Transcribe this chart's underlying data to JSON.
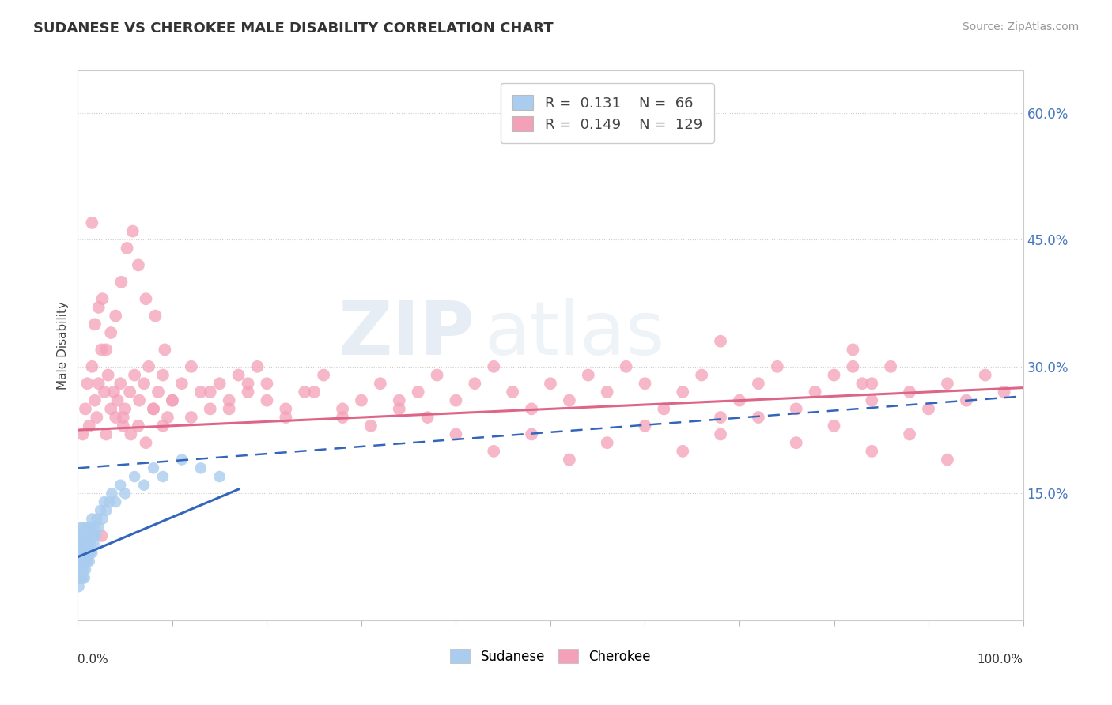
{
  "title": "SUDANESE VS CHEROKEE MALE DISABILITY CORRELATION CHART",
  "source": "Source: ZipAtlas.com",
  "ylabel": "Male Disability",
  "ytick_labels": [
    "15.0%",
    "30.0%",
    "45.0%",
    "60.0%"
  ],
  "ytick_values": [
    0.15,
    0.3,
    0.45,
    0.6
  ],
  "xlim": [
    0.0,
    1.0
  ],
  "ylim": [
    0.0,
    0.65
  ],
  "sudanese_R": 0.131,
  "sudanese_N": 66,
  "cherokee_R": 0.149,
  "cherokee_N": 129,
  "sudanese_color": "#aaccee",
  "sudanese_line_color": "#3366bb",
  "cherokee_color": "#f4a0b8",
  "cherokee_line_color": "#dd6688",
  "cherokee_trendline": [
    0.0,
    1.0,
    0.225,
    0.275
  ],
  "sudanese_solid_line": [
    0.0,
    0.17,
    0.075,
    0.155
  ],
  "sudanese_dashed_line": [
    0.0,
    1.0,
    0.18,
    0.265
  ],
  "cherokee_x": [
    0.005,
    0.008,
    0.01,
    0.012,
    0.015,
    0.018,
    0.02,
    0.022,
    0.025,
    0.028,
    0.03,
    0.032,
    0.035,
    0.038,
    0.04,
    0.042,
    0.045,
    0.048,
    0.05,
    0.055,
    0.06,
    0.065,
    0.07,
    0.075,
    0.08,
    0.085,
    0.09,
    0.095,
    0.1,
    0.11,
    0.12,
    0.13,
    0.14,
    0.15,
    0.16,
    0.17,
    0.18,
    0.19,
    0.2,
    0.22,
    0.24,
    0.26,
    0.28,
    0.3,
    0.32,
    0.34,
    0.36,
    0.38,
    0.4,
    0.42,
    0.44,
    0.46,
    0.48,
    0.5,
    0.52,
    0.54,
    0.56,
    0.58,
    0.6,
    0.62,
    0.64,
    0.66,
    0.68,
    0.7,
    0.72,
    0.74,
    0.76,
    0.78,
    0.8,
    0.82,
    0.84,
    0.86,
    0.88,
    0.9,
    0.92,
    0.94,
    0.96,
    0.98,
    0.82,
    0.83,
    0.84,
    0.68,
    0.048,
    0.056,
    0.064,
    0.072,
    0.08,
    0.09,
    0.1,
    0.12,
    0.14,
    0.16,
    0.18,
    0.2,
    0.22,
    0.25,
    0.28,
    0.31,
    0.34,
    0.37,
    0.4,
    0.44,
    0.48,
    0.52,
    0.56,
    0.6,
    0.64,
    0.68,
    0.72,
    0.76,
    0.8,
    0.84,
    0.88,
    0.92,
    0.018,
    0.022,
    0.026,
    0.03,
    0.035,
    0.04,
    0.046,
    0.052,
    0.058,
    0.064,
    0.072,
    0.082,
    0.092,
    0.015,
    0.025
  ],
  "cherokee_y": [
    0.22,
    0.25,
    0.28,
    0.23,
    0.3,
    0.26,
    0.24,
    0.28,
    0.32,
    0.27,
    0.22,
    0.29,
    0.25,
    0.27,
    0.24,
    0.26,
    0.28,
    0.23,
    0.25,
    0.27,
    0.29,
    0.26,
    0.28,
    0.3,
    0.25,
    0.27,
    0.29,
    0.24,
    0.26,
    0.28,
    0.3,
    0.27,
    0.25,
    0.28,
    0.26,
    0.29,
    0.27,
    0.3,
    0.28,
    0.25,
    0.27,
    0.29,
    0.24,
    0.26,
    0.28,
    0.25,
    0.27,
    0.29,
    0.26,
    0.28,
    0.3,
    0.27,
    0.25,
    0.28,
    0.26,
    0.29,
    0.27,
    0.3,
    0.28,
    0.25,
    0.27,
    0.29,
    0.24,
    0.26,
    0.28,
    0.3,
    0.25,
    0.27,
    0.29,
    0.32,
    0.28,
    0.3,
    0.27,
    0.25,
    0.28,
    0.26,
    0.29,
    0.27,
    0.3,
    0.28,
    0.26,
    0.33,
    0.24,
    0.22,
    0.23,
    0.21,
    0.25,
    0.23,
    0.26,
    0.24,
    0.27,
    0.25,
    0.28,
    0.26,
    0.24,
    0.27,
    0.25,
    0.23,
    0.26,
    0.24,
    0.22,
    0.2,
    0.22,
    0.19,
    0.21,
    0.23,
    0.2,
    0.22,
    0.24,
    0.21,
    0.23,
    0.2,
    0.22,
    0.19,
    0.35,
    0.37,
    0.38,
    0.32,
    0.34,
    0.36,
    0.4,
    0.44,
    0.46,
    0.42,
    0.38,
    0.36,
    0.32,
    0.47,
    0.1
  ],
  "sudanese_x": [
    0.001,
    0.001,
    0.001,
    0.002,
    0.002,
    0.002,
    0.002,
    0.003,
    0.003,
    0.003,
    0.003,
    0.003,
    0.004,
    0.004,
    0.004,
    0.004,
    0.005,
    0.005,
    0.005,
    0.005,
    0.006,
    0.006,
    0.006,
    0.006,
    0.007,
    0.007,
    0.007,
    0.008,
    0.008,
    0.008,
    0.009,
    0.009,
    0.01,
    0.01,
    0.011,
    0.011,
    0.012,
    0.012,
    0.013,
    0.013,
    0.014,
    0.015,
    0.015,
    0.016,
    0.017,
    0.018,
    0.019,
    0.02,
    0.022,
    0.024,
    0.026,
    0.028,
    0.03,
    0.033,
    0.036,
    0.04,
    0.045,
    0.05,
    0.06,
    0.07,
    0.08,
    0.09,
    0.11,
    0.13,
    0.15,
    0.001
  ],
  "sudanese_y": [
    0.07,
    0.08,
    0.06,
    0.05,
    0.09,
    0.07,
    0.1,
    0.06,
    0.08,
    0.1,
    0.05,
    0.07,
    0.06,
    0.09,
    0.07,
    0.11,
    0.06,
    0.08,
    0.1,
    0.05,
    0.07,
    0.09,
    0.06,
    0.11,
    0.08,
    0.05,
    0.1,
    0.07,
    0.09,
    0.06,
    0.08,
    0.1,
    0.07,
    0.09,
    0.08,
    0.11,
    0.07,
    0.1,
    0.08,
    0.11,
    0.09,
    0.08,
    0.12,
    0.1,
    0.09,
    0.11,
    0.1,
    0.12,
    0.11,
    0.13,
    0.12,
    0.14,
    0.13,
    0.14,
    0.15,
    0.14,
    0.16,
    0.15,
    0.17,
    0.16,
    0.18,
    0.17,
    0.19,
    0.18,
    0.17,
    0.04
  ]
}
